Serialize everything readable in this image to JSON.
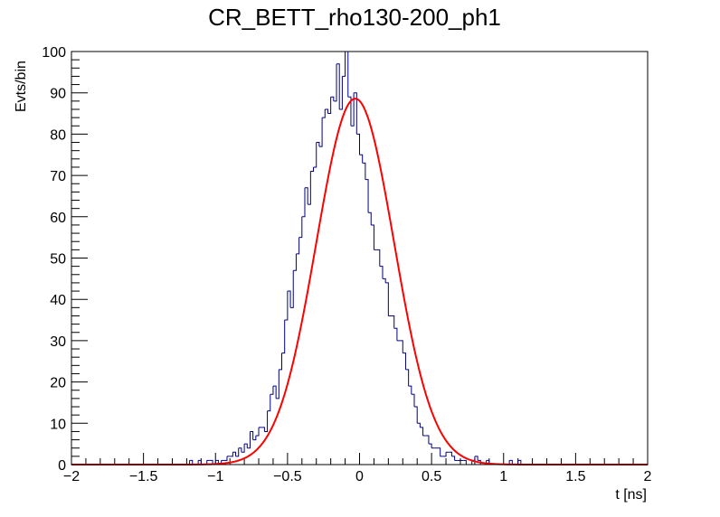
{
  "chart_data": {
    "type": "histogram",
    "title": "CR_BETT_rho130-200_ph1",
    "xlabel": "t [ns]",
    "ylabel": "Evts/bin",
    "xlim": [
      -2,
      2
    ],
    "ylim": [
      0,
      100
    ],
    "x_ticks": [
      -2,
      -1.5,
      -1,
      -0.5,
      0,
      0.5,
      1,
      1.5,
      2
    ],
    "x_tick_labels": [
      "−2",
      "−1.5",
      "−1",
      "−0.5",
      "0",
      "0.5",
      "1",
      "1.5",
      "2"
    ],
    "y_ticks": [
      0,
      10,
      20,
      30,
      40,
      50,
      60,
      70,
      80,
      90,
      100
    ],
    "y_tick_labels": [
      "0",
      "10",
      "20",
      "30",
      "40",
      "50",
      "60",
      "70",
      "80",
      "90",
      "100"
    ],
    "grid": false,
    "histogram": {
      "color": "#00007f",
      "bin_edges": [
        -1.2,
        -1.18,
        -1.16,
        -1.14,
        -1.12,
        -1.1,
        -1.08,
        -1.06,
        -1.04,
        -1.02,
        -1.0,
        -0.98,
        -0.96,
        -0.94,
        -0.92,
        -0.9,
        -0.88,
        -0.86,
        -0.84,
        -0.82,
        -0.8,
        -0.78,
        -0.76,
        -0.74,
        -0.72,
        -0.7,
        -0.68,
        -0.66,
        -0.64,
        -0.62,
        -0.6,
        -0.58,
        -0.56,
        -0.54,
        -0.52,
        -0.5,
        -0.48,
        -0.46,
        -0.44,
        -0.42,
        -0.4,
        -0.38,
        -0.36,
        -0.34,
        -0.32,
        -0.3,
        -0.28,
        -0.26,
        -0.24,
        -0.22,
        -0.2,
        -0.18,
        -0.16,
        -0.14,
        -0.12,
        -0.1,
        -0.08,
        -0.06,
        -0.04,
        -0.02,
        0.0,
        0.02,
        0.04,
        0.06,
        0.08,
        0.1,
        0.12,
        0.14,
        0.16,
        0.18,
        0.2,
        0.22,
        0.24,
        0.26,
        0.28,
        0.3,
        0.32,
        0.34,
        0.36,
        0.38,
        0.4,
        0.42,
        0.44,
        0.46,
        0.48,
        0.5,
        0.52,
        0.54,
        0.56,
        0.58,
        0.6,
        0.62,
        0.64,
        0.66,
        0.68,
        0.7,
        0.72,
        0.74,
        0.76,
        0.78,
        0.8,
        0.82,
        0.84,
        0.86,
        0.88,
        0.9,
        0.92,
        0.94,
        0.96,
        0.98,
        1.0,
        1.02,
        1.04,
        1.06,
        1.08,
        1.1,
        1.12
      ],
      "counts": [
        0,
        1,
        0,
        0,
        1,
        0,
        0,
        1,
        1,
        0,
        1,
        0,
        1,
        1,
        2,
        2,
        3,
        2,
        4,
        3,
        5,
        4,
        8,
        6,
        7,
        9,
        9,
        8,
        13,
        17,
        19,
        16,
        23,
        27,
        35,
        42,
        38,
        47,
        51,
        55,
        60,
        67,
        63,
        71,
        72,
        78,
        77,
        84,
        86,
        85,
        89,
        88,
        97,
        86,
        94,
        100,
        89,
        82,
        90,
        80,
        75,
        73,
        69,
        61,
        58,
        52,
        52,
        48,
        45,
        44,
        36,
        36,
        33,
        30,
        30,
        27,
        23,
        19,
        17,
        14,
        10,
        9,
        7,
        7,
        5,
        4,
        4,
        4,
        2,
        2,
        3,
        3,
        2,
        1,
        1,
        1,
        1,
        0,
        0,
        1,
        2,
        1,
        0,
        0,
        1,
        0,
        0,
        0,
        0,
        0,
        0,
        0,
        1,
        0,
        0,
        1
      ]
    },
    "fit": {
      "color": "#ff0000",
      "function": "gaussian",
      "amplitude": 88.6,
      "mean": -0.03,
      "sigma": 0.27
    }
  }
}
